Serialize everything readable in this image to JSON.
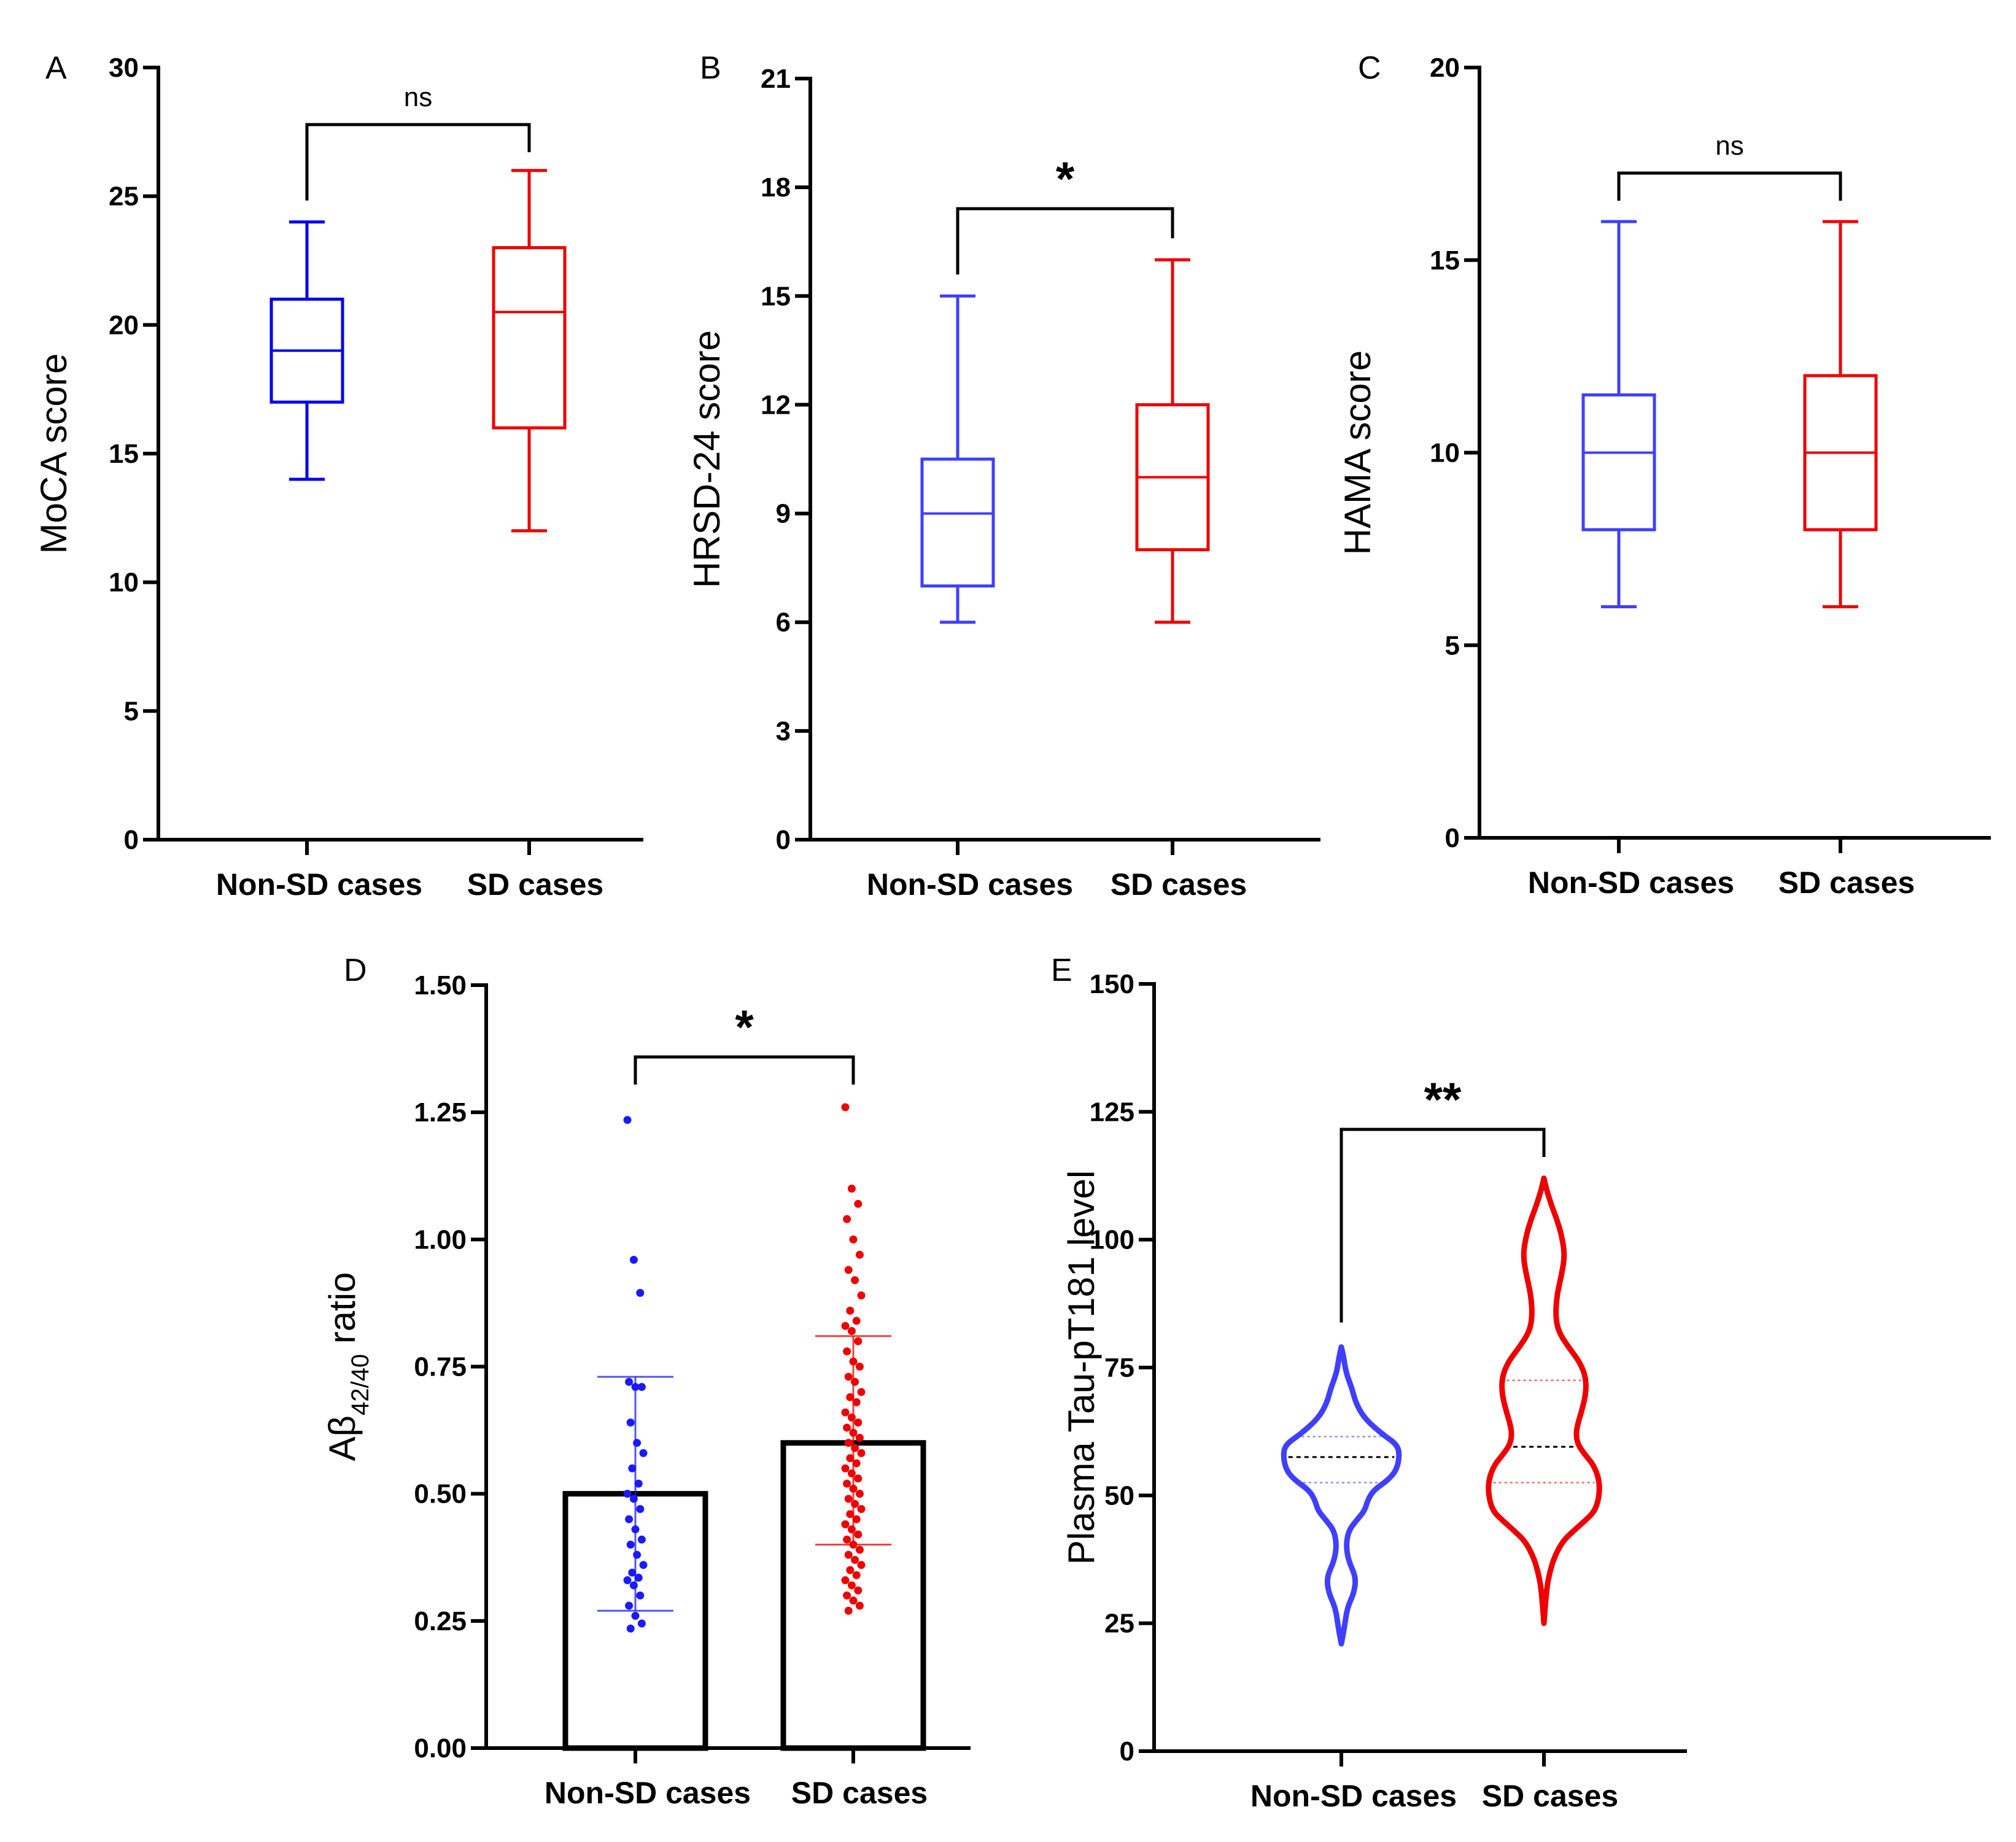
{
  "chart_data": [
    {
      "panel": "A",
      "type": "box",
      "ylabel": "MoCA score",
      "ylim": [
        0,
        30
      ],
      "yticks": [
        0,
        5,
        10,
        15,
        20,
        25,
        30
      ],
      "categories": [
        "Non-SD cases",
        "SD cases"
      ],
      "colors": [
        "#0000ee",
        "#ee0000"
      ],
      "boxes": [
        {
          "name": "Non-SD cases",
          "min": 14,
          "q1": 17,
          "median": 19,
          "q3": 21,
          "max": 24
        },
        {
          "name": "SD cases",
          "min": 12,
          "q1": 16,
          "median": 20.5,
          "q3": 23,
          "max": 26
        }
      ],
      "significance": "ns"
    },
    {
      "panel": "B",
      "type": "box",
      "ylabel": "HRSD-24 score",
      "ylim": [
        0,
        21
      ],
      "yticks": [
        0,
        3,
        6,
        9,
        12,
        15,
        18,
        21
      ],
      "categories": [
        "Non-SD cases",
        "SD cases"
      ],
      "colors": [
        "#3f3fff",
        "#ee0000"
      ],
      "boxes": [
        {
          "name": "Non-SD cases",
          "min": 6,
          "q1": 7,
          "median": 9,
          "q3": 10.5,
          "max": 15
        },
        {
          "name": "SD cases",
          "min": 6,
          "q1": 8,
          "median": 10,
          "q3": 12,
          "max": 16
        }
      ],
      "significance": "*"
    },
    {
      "panel": "C",
      "type": "box",
      "ylabel": "HAMA score",
      "ylim": [
        0,
        20
      ],
      "yticks": [
        0,
        5,
        10,
        15,
        20
      ],
      "categories": [
        "Non-SD cases",
        "SD cases"
      ],
      "colors": [
        "#3f3fff",
        "#ee0000"
      ],
      "boxes": [
        {
          "name": "Non-SD cases",
          "min": 6,
          "q1": 8,
          "median": 10,
          "q3": 11.5,
          "max": 16
        },
        {
          "name": "SD cases",
          "min": 6,
          "q1": 8,
          "median": 10,
          "q3": 12,
          "max": 16
        }
      ],
      "significance": "ns"
    },
    {
      "panel": "D",
      "type": "bar",
      "ylabel": "Aβ",
      "ylabel_sub": "42/40",
      "ylabel_suffix": " ratio",
      "ylim": [
        0,
        1.5
      ],
      "yticks": [
        "0.00",
        "0.25",
        "0.50",
        "0.75",
        "1.00",
        "1.25",
        "1.50"
      ],
      "categories": [
        "Non-SD cases",
        "SD cases"
      ],
      "colors": [
        "#1a1aff",
        "#ee0000"
      ],
      "bars": [
        {
          "name": "Non-SD cases",
          "mean": 0.5,
          "sd_low": 0.27,
          "sd_high": 0.73
        },
        {
          "name": "SD cases",
          "mean": 0.6,
          "sd_low": 0.4,
          "sd_high": 0.81
        }
      ],
      "points": [
        [
          1.235,
          0.96,
          0.895,
          0.72,
          0.71,
          0.71,
          0.64,
          0.6,
          0.58,
          0.55,
          0.52,
          0.5,
          0.49,
          0.47,
          0.45,
          0.43,
          0.41,
          0.4,
          0.38,
          0.36,
          0.345,
          0.335,
          0.33,
          0.32,
          0.3,
          0.28,
          0.26,
          0.245,
          0.235
        ],
        [
          1.26,
          1.1,
          1.07,
          1.04,
          1.0,
          0.97,
          0.94,
          0.92,
          0.89,
          0.86,
          0.84,
          0.83,
          0.82,
          0.8,
          0.78,
          0.76,
          0.75,
          0.73,
          0.72,
          0.7,
          0.69,
          0.68,
          0.66,
          0.65,
          0.64,
          0.63,
          0.62,
          0.61,
          0.6,
          0.59,
          0.58,
          0.57,
          0.56,
          0.55,
          0.54,
          0.53,
          0.52,
          0.51,
          0.5,
          0.49,
          0.48,
          0.47,
          0.46,
          0.45,
          0.44,
          0.43,
          0.42,
          0.41,
          0.4,
          0.39,
          0.38,
          0.37,
          0.36,
          0.35,
          0.34,
          0.33,
          0.32,
          0.31,
          0.3,
          0.29,
          0.28,
          0.27
        ]
      ],
      "significance": "*"
    },
    {
      "panel": "E",
      "type": "violin",
      "ylabel": "Plasma Tau-pT181 level",
      "ylim": [
        0,
        150
      ],
      "yticks": [
        0,
        25,
        50,
        75,
        100,
        125,
        150
      ],
      "categories": [
        "Non-SD cases",
        "SD cases"
      ],
      "colors": [
        "#3f3fff",
        "#ee0000"
      ],
      "violins": [
        {
          "name": "Non-SD cases",
          "median": 57.5,
          "q1": 52.5,
          "q3": 61.5,
          "profile": [
            [
              21,
              0
            ],
            [
              24,
              0.05
            ],
            [
              28,
              0.1
            ],
            [
              31,
              0.22
            ],
            [
              34,
              0.25
            ],
            [
              37,
              0.13
            ],
            [
              40,
              0.08
            ],
            [
              43,
              0.12
            ],
            [
              45,
              0.25
            ],
            [
              47,
              0.4
            ],
            [
              49,
              0.45
            ],
            [
              51,
              0.55
            ],
            [
              53,
              0.8
            ],
            [
              55,
              0.95
            ],
            [
              58,
              1.0
            ],
            [
              60,
              0.95
            ],
            [
              62,
              0.7
            ],
            [
              65,
              0.4
            ],
            [
              68,
              0.25
            ],
            [
              71,
              0.18
            ],
            [
              74,
              0.08
            ],
            [
              77,
              0.04
            ],
            [
              79,
              0
            ]
          ]
        },
        {
          "name": "SD cases",
          "median": 59.5,
          "q1": 52.5,
          "q3": 72.5,
          "profile": [
            [
              25,
              0
            ],
            [
              28,
              0.02
            ],
            [
              32,
              0.05
            ],
            [
              35,
              0.1
            ],
            [
              38,
              0.18
            ],
            [
              41,
              0.32
            ],
            [
              43,
              0.5
            ],
            [
              45,
              0.7
            ],
            [
              47,
              0.88
            ],
            [
              50,
              0.95
            ],
            [
              53,
              0.95
            ],
            [
              56,
              0.85
            ],
            [
              58,
              0.7
            ],
            [
              60,
              0.58
            ],
            [
              62,
              0.55
            ],
            [
              64,
              0.58
            ],
            [
              67,
              0.66
            ],
            [
              70,
              0.72
            ],
            [
              73,
              0.72
            ],
            [
              76,
              0.62
            ],
            [
              79,
              0.42
            ],
            [
              82,
              0.25
            ],
            [
              85,
              0.2
            ],
            [
              89,
              0.22
            ],
            [
              93,
              0.3
            ],
            [
              97,
              0.36
            ],
            [
              101,
              0.3
            ],
            [
              104,
              0.22
            ],
            [
              107,
              0.12
            ],
            [
              110,
              0.04
            ],
            [
              112,
              0
            ]
          ]
        }
      ],
      "significance": "**"
    }
  ]
}
